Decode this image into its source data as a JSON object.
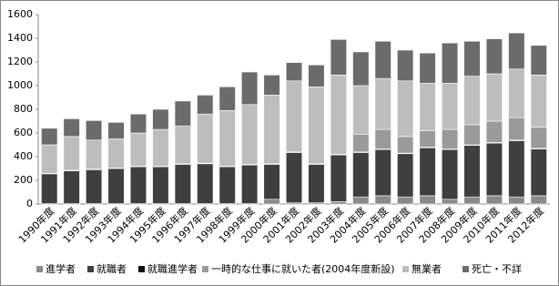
{
  "chart_data": {
    "type": "stacked-bar",
    "categories": [
      "1990年度",
      "1991年度",
      "1992年度",
      "1993年度",
      "1994年度",
      "1995年度",
      "1996年度",
      "1997年度",
      "1998年度",
      "1999年度",
      "2000年度",
      "2001年度",
      "2002年度",
      "2003年度",
      "2004年度",
      "2005年度",
      "2006年度",
      "2007年度",
      "2008年度",
      "2009年度",
      "2010年度",
      "2011年度",
      "2012年度"
    ],
    "series": [
      {
        "name": "進学者",
        "color": "#8a8a8a",
        "values": [
          3,
          3,
          3,
          3,
          3,
          3,
          3,
          3,
          3,
          3,
          40,
          10,
          10,
          20,
          60,
          70,
          60,
          70,
          40,
          60,
          70,
          60,
          70
        ]
      },
      {
        "name": "就職者",
        "color": "#3f3f3f",
        "values": [
          252,
          277,
          287,
          297,
          312,
          312,
          332,
          337,
          312,
          327,
          295,
          425,
          325,
          395,
          375,
          390,
          365,
          405,
          420,
          435,
          445,
          475,
          395
        ]
      },
      {
        "name": "就職進学者",
        "color": "#111111",
        "values": [
          5,
          5,
          5,
          5,
          5,
          5,
          5,
          5,
          5,
          5,
          5,
          5,
          5,
          5,
          5,
          5,
          5,
          5,
          5,
          5,
          5,
          5,
          5
        ]
      },
      {
        "name": "一時的な仕事に就いた者(2004年度新設)",
        "color": "#9a9a9a",
        "values": [
          null,
          null,
          null,
          null,
          null,
          null,
          null,
          null,
          null,
          null,
          null,
          null,
          null,
          null,
          150,
          165,
          140,
          140,
          165,
          170,
          180,
          190,
          180
        ]
      },
      {
        "name": "無業者",
        "color": "#bdbdbd",
        "values": [
          240,
          285,
          245,
          245,
          280,
          310,
          320,
          415,
          470,
          505,
          580,
          600,
          650,
          670,
          410,
          430,
          470,
          400,
          390,
          410,
          400,
          410,
          440
        ]
      },
      {
        "name": "死亡・不詳",
        "color": "#6b6b6b",
        "values": [
          140,
          150,
          165,
          140,
          160,
          170,
          210,
          160,
          200,
          275,
          170,
          155,
          185,
          300,
          285,
          315,
          260,
          255,
          340,
          295,
          295,
          305,
          250
        ]
      }
    ],
    "ylim": [
      0,
      1600
    ],
    "yticks": [
      0,
      200,
      400,
      600,
      800,
      1000,
      1200,
      1400,
      1600
    ],
    "legend": "bottom"
  }
}
